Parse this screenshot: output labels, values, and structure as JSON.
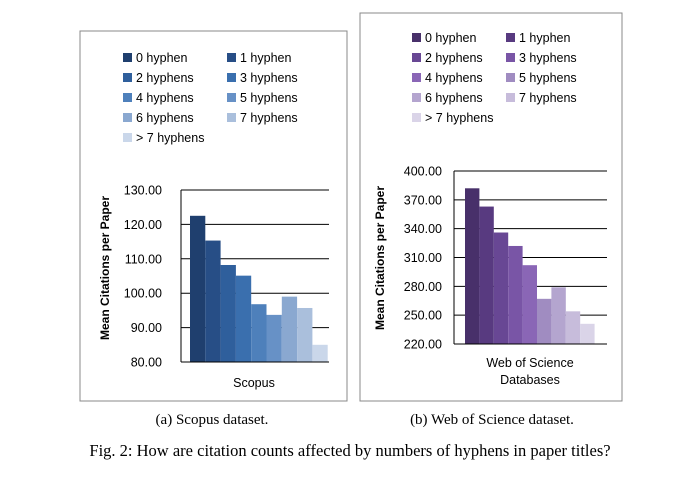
{
  "figure": {
    "caption": "Fig. 2: How are citation counts affected by numbers of hyphens in paper titles?"
  },
  "chart_data": [
    {
      "type": "bar",
      "caption": "(a) Scopus dataset.",
      "categories": [
        "Scopus"
      ],
      "xlabel": "",
      "ylabel": "Mean Citations per Paper",
      "ylim": [
        80,
        130
      ],
      "yticks": [
        80,
        90,
        100,
        110,
        120,
        130
      ],
      "tick_format": "2dp",
      "grid": true,
      "legend_position": "top",
      "series": [
        {
          "name": "0 hyphen",
          "values": [
            122.5
          ],
          "color": "#1f3f6e"
        },
        {
          "name": "1 hyphen",
          "values": [
            115.3
          ],
          "color": "#274e86"
        },
        {
          "name": "2 hyphens",
          "values": [
            108.2
          ],
          "color": "#2f5f9c"
        },
        {
          "name": "3 hyphens",
          "values": [
            105.1
          ],
          "color": "#3a6fae"
        },
        {
          "name": "4 hyphens",
          "values": [
            96.8
          ],
          "color": "#4e80bb"
        },
        {
          "name": "5 hyphens",
          "values": [
            93.7
          ],
          "color": "#6791c6"
        },
        {
          "name": "6 hyphens",
          "values": [
            99.0
          ],
          "color": "#8aa8d0"
        },
        {
          "name": "7 hyphens",
          "values": [
            95.7
          ],
          "color": "#aabfdc"
        },
        {
          "name": "> 7 hyphens",
          "values": [
            85.0
          ],
          "color": "#cad7ea"
        }
      ]
    },
    {
      "type": "bar",
      "caption": "(b) Web of Science dataset.",
      "categories": [
        "Web of Science"
      ],
      "xlabel": "Databases",
      "ylabel": "Mean Citations per Paper",
      "ylim": [
        220,
        400
      ],
      "yticks": [
        220,
        250,
        280,
        310,
        340,
        370,
        400
      ],
      "tick_format": "2dp",
      "grid": true,
      "legend_position": "top",
      "series": [
        {
          "name": "0 hyphen",
          "values": [
            382.0
          ],
          "color": "#48306a"
        },
        {
          "name": "1 hyphen",
          "values": [
            363.0
          ],
          "color": "#583a80"
        },
        {
          "name": "2 hyphens",
          "values": [
            336.0
          ],
          "color": "#684794"
        },
        {
          "name": "3 hyphens",
          "values": [
            322.0
          ],
          "color": "#7955a6"
        },
        {
          "name": "4 hyphens",
          "values": [
            302.0
          ],
          "color": "#8a66b6"
        },
        {
          "name": "5 hyphens",
          "values": [
            267.0
          ],
          "color": "#a08cc1"
        },
        {
          "name": "6 hyphens",
          "values": [
            279.0
          ],
          "color": "#b4a5cf"
        },
        {
          "name": "7 hyphens",
          "values": [
            254.0
          ],
          "color": "#c7bcdb"
        },
        {
          "name": "> 7 hyphens",
          "values": [
            241.0
          ],
          "color": "#dad4e8"
        }
      ]
    }
  ]
}
